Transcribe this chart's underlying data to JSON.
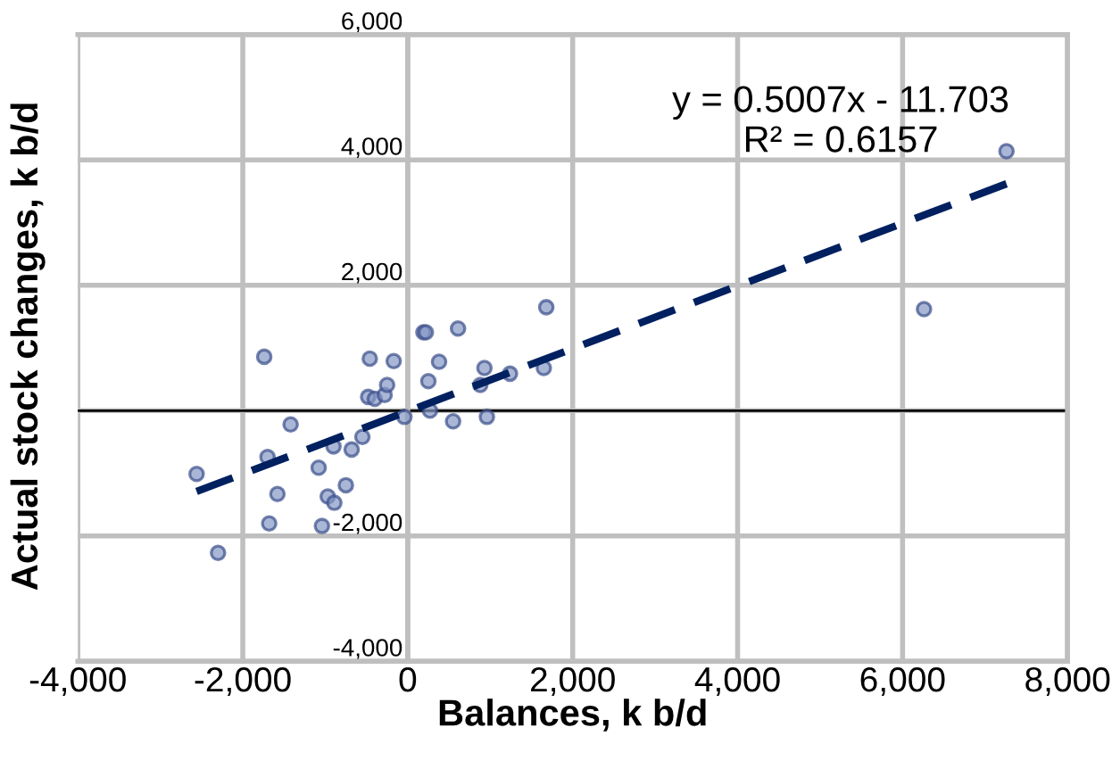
{
  "chart_data": {
    "type": "scatter",
    "xlabel": "Balances, k b/d",
    "ylabel": "Actual stock changes, k b/d",
    "annotations": [
      "y = 0.5007x - 11.703\nR² = 0.6157"
    ],
    "series": [
      {
        "color": "#8497c4",
        "marker": "circle",
        "x": [
          -2560,
          -2300,
          -1740,
          -1700,
          -1680,
          -1580,
          -1420,
          -1080,
          -1040,
          -970,
          -890,
          -900,
          -750,
          -680,
          -550,
          -460,
          -480,
          -400,
          -280,
          -250,
          -170,
          -40,
          190,
          220,
          250,
          270,
          380,
          550,
          610,
          880,
          930,
          960,
          1240,
          1650,
          1680,
          6260,
          7260
        ],
        "values": [
          -1010,
          -2270,
          860,
          -740,
          -1800,
          -1330,
          -220,
          -910,
          -1840,
          -1370,
          -1470,
          -570,
          -1190,
          -620,
          -420,
          830,
          220,
          190,
          250,
          410,
          790,
          -100,
          1250,
          1250,
          470,
          0,
          780,
          -170,
          1310,
          410,
          680,
          -100,
          590,
          680,
          1650,
          1620,
          4140
        ]
      },
      {
        "type": "line",
        "color": "#002060",
        "line_style": "dashed",
        "x": [
          -2560,
          7260
        ],
        "values": [
          -1290,
          3620
        ]
      }
    ],
    "xlim": [
      -4000,
      8000
    ],
    "xticks": [
      {
        "value": -4000,
        "label": "-4,000"
      },
      {
        "value": -2000,
        "label": "-2,000"
      },
      {
        "value": 0,
        "label": "0"
      },
      {
        "value": 2000,
        "label": "2,000"
      },
      {
        "value": 4000,
        "label": "4,000"
      },
      {
        "value": 6000,
        "label": "6,000"
      },
      {
        "value": 8000,
        "label": "8,000"
      }
    ],
    "ylim": [
      -4000,
      6000
    ],
    "yticks": [
      {
        "value": -4000,
        "label": "-4,000"
      },
      {
        "value": -2000,
        "label": "-2,000"
      },
      {
        "value": 0,
        "label": null
      },
      {
        "value": 2000,
        "label": "2,000"
      },
      {
        "value": 4000,
        "label": "4,000"
      },
      {
        "value": 6000,
        "label": "6,000"
      }
    ],
    "ref_lines": [
      {
        "axis": "y",
        "value": 0,
        "color": "#000000"
      }
    ],
    "grid": true
  }
}
